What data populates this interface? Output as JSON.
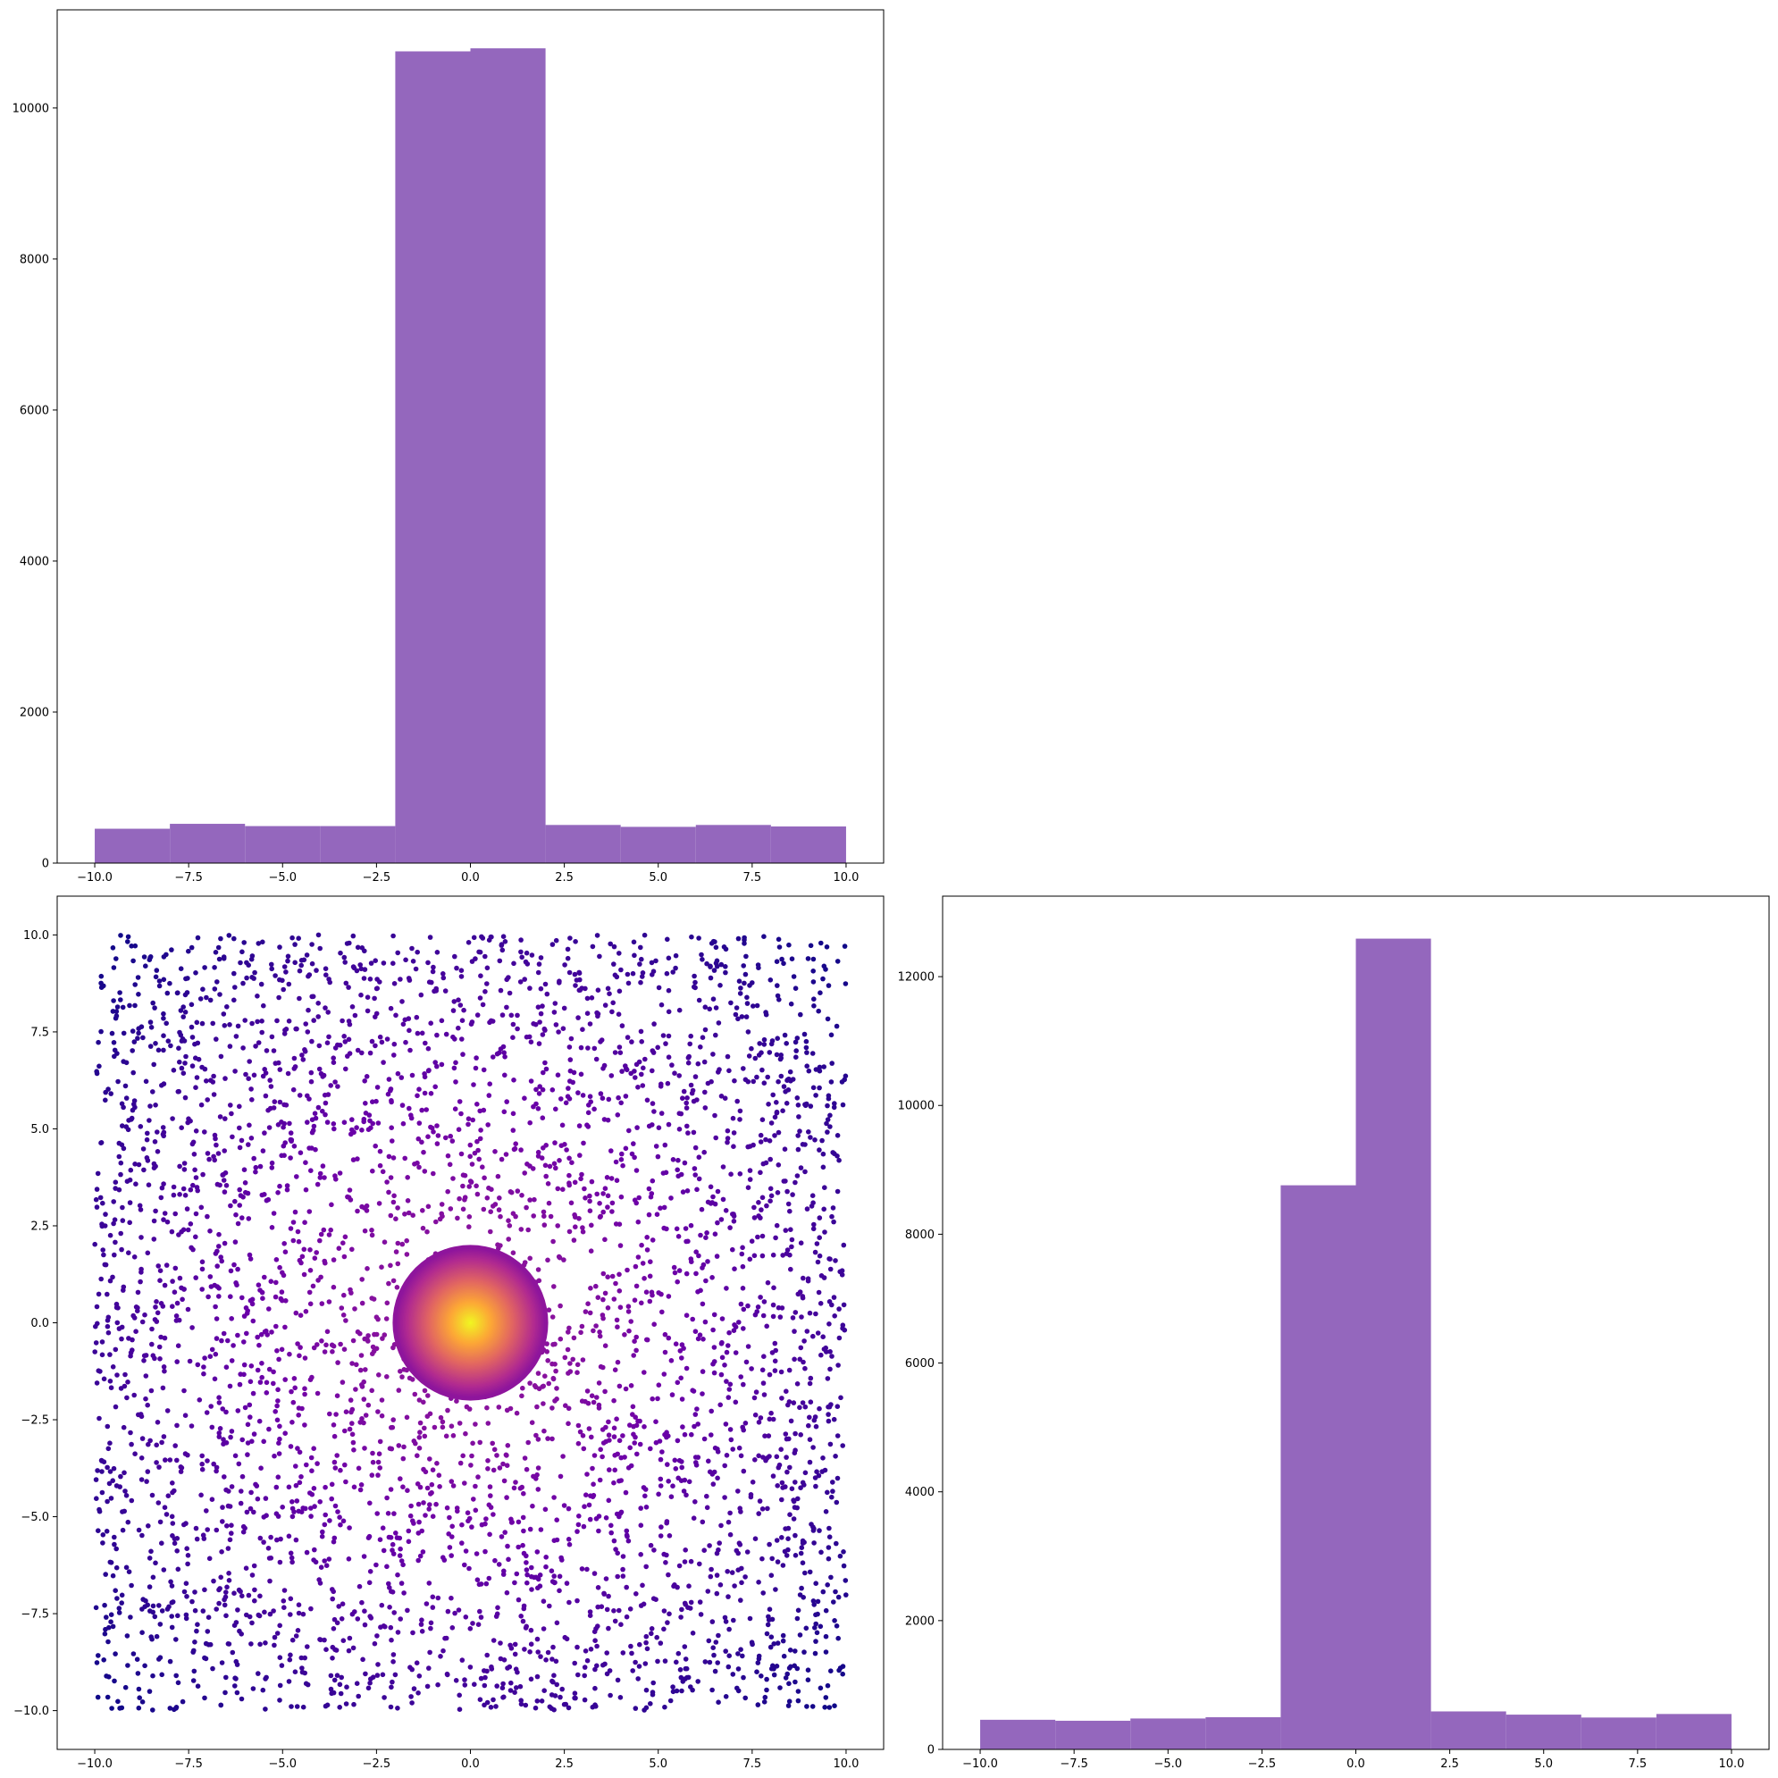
{
  "figure": {
    "layout": "2x2 corner grid (upper-right panel empty)"
  },
  "chart_data": [
    {
      "type": "bar",
      "subtype": "histogram",
      "position": "top-left",
      "title": "",
      "xlabel": "",
      "ylabel": "",
      "bin_edges": [
        -10,
        -8,
        -6,
        -4,
        -2,
        0,
        2,
        4,
        6,
        8,
        10
      ],
      "values": [
        455,
        520,
        490,
        490,
        10750,
        10790,
        505,
        480,
        505,
        485
      ],
      "xlim": [
        -11,
        11
      ],
      "ylim": [
        0,
        11300
      ],
      "xticks": [
        -10,
        -7.5,
        -5,
        -2.5,
        0,
        2.5,
        5,
        7.5,
        10
      ],
      "xtick_labels": [
        "−10.0",
        "−7.5",
        "−5.0",
        "−2.5",
        "0.0",
        "2.5",
        "5.0",
        "7.5",
        "10.0"
      ],
      "yticks": [
        0,
        2000,
        4000,
        6000,
        8000,
        10000
      ],
      "ytick_labels": [
        "0",
        "2000",
        "4000",
        "6000",
        "8000",
        "10000"
      ],
      "grid": false,
      "color": "#9467bd"
    },
    {
      "type": "scatter",
      "position": "bottom-left",
      "title": "",
      "xlabel": "",
      "ylabel": "",
      "description_of_points": "approx. 4000 uniformly distributed points in [-10,10]x[-10,10] plus a dense disc of ~20000 points of radius 2 centered at (0,0); color encodes proximity to origin using a plasma-like colormap",
      "uniform_points": {
        "count": 4000,
        "x_range": [
          -10,
          10
        ],
        "y_range": [
          -10,
          10
        ]
      },
      "dense_cluster": {
        "count": 20000,
        "center": [
          0,
          0
        ],
        "radius": 2
      },
      "colormap": [
        "#0d0887",
        "#6a00a8",
        "#b12a90",
        "#e16462",
        "#fca636",
        "#f0f921"
      ],
      "xlim": [
        -11,
        11
      ],
      "ylim": [
        -11,
        11
      ],
      "xticks": [
        -10,
        -7.5,
        -5,
        -2.5,
        0,
        2.5,
        5,
        7.5,
        10
      ],
      "xtick_labels": [
        "−10.0",
        "−7.5",
        "−5.0",
        "−2.5",
        "0.0",
        "2.5",
        "5.0",
        "7.5",
        "10.0"
      ],
      "yticks": [
        -10,
        -7.5,
        -5,
        -2.5,
        0,
        2.5,
        5,
        7.5,
        10
      ],
      "ytick_labels": [
        "−10.0",
        "−7.5",
        "−5.0",
        "−2.5",
        "0.0",
        "2.5",
        "5.0",
        "7.5",
        "10.0"
      ],
      "grid": false
    },
    {
      "type": "bar",
      "subtype": "histogram",
      "position": "bottom-right",
      "title": "",
      "xlabel": "",
      "ylabel": "",
      "bin_edges": [
        -10,
        -8,
        -6,
        -4,
        -2,
        0,
        2,
        4,
        6,
        8,
        10
      ],
      "values": [
        460,
        445,
        480,
        500,
        8760,
        12590,
        590,
        540,
        495,
        550
      ],
      "xlim": [
        -11,
        11
      ],
      "ylim": [
        0,
        13250
      ],
      "xticks": [
        -10,
        -7.5,
        -5,
        -2.5,
        0,
        2.5,
        5,
        7.5,
        10
      ],
      "xtick_labels": [
        "−10.0",
        "−7.5",
        "−5.0",
        "−2.5",
        "0.0",
        "2.5",
        "5.0",
        "7.5",
        "10.0"
      ],
      "yticks": [
        0,
        2000,
        4000,
        6000,
        8000,
        10000,
        12000
      ],
      "ytick_labels": [
        "0",
        "2000",
        "4000",
        "6000",
        "8000",
        "10000",
        "12000"
      ],
      "grid": false,
      "color": "#9467bd"
    }
  ]
}
